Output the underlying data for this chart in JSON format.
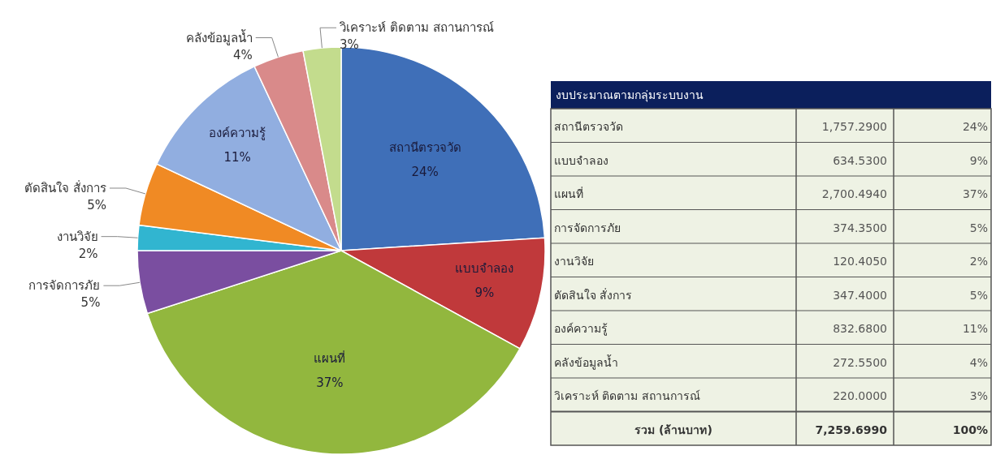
{
  "chart_data": [
    {
      "type": "pie",
      "categories": [
        "สถานีตรวจวัด",
        "แบบจำลอง",
        "แผนที่",
        "การจัดการภัย",
        "งานวิจัย",
        "ตัดสินใจ สั่งการ",
        "องค์ความรู้",
        "คลังข้อมูลน้ำ",
        "วิเคราะห์ ติดตาม สถานการณ์"
      ],
      "values": [
        24,
        9,
        37,
        5,
        2,
        5,
        11,
        4,
        3
      ],
      "colors": [
        "#3f6fb8",
        "#c0393b",
        "#92b73e",
        "#7a4ea0",
        "#31b5d0",
        "#f08a24",
        "#91aee0",
        "#d98a8a",
        "#c3dc8d"
      ],
      "value_labels": [
        "24%",
        "9%",
        "37%",
        "5%",
        "2%",
        "5%",
        "11%",
        "4%",
        "3%"
      ]
    },
    {
      "type": "other",
      "title": "งบประมาณตามกลุ่มระบบงาน",
      "annotations": [
        "สถานีตรวจวัด",
        "1,757.2900",
        "24%",
        "แบบจำลอง",
        "634.5300",
        "9%",
        "แผนที่",
        "2,700.4940",
        "37%",
        "การจัดการภัย",
        "374.3500",
        "5%",
        "งานวิจัย",
        "120.4050",
        "2%",
        "ตัดสินใจ สั่งการ",
        "347.4000",
        "5%",
        "องค์ความรู้",
        "832.6800",
        "11%",
        "คลังข้อมูลน้ำ",
        "272.5500",
        "4%",
        "วิเคราะห์ ติดตาม สถานการณ์",
        "220.0000",
        "3%",
        "รวม (ล้านบาท)",
        "7,259.6990",
        "100%"
      ]
    }
  ]
}
